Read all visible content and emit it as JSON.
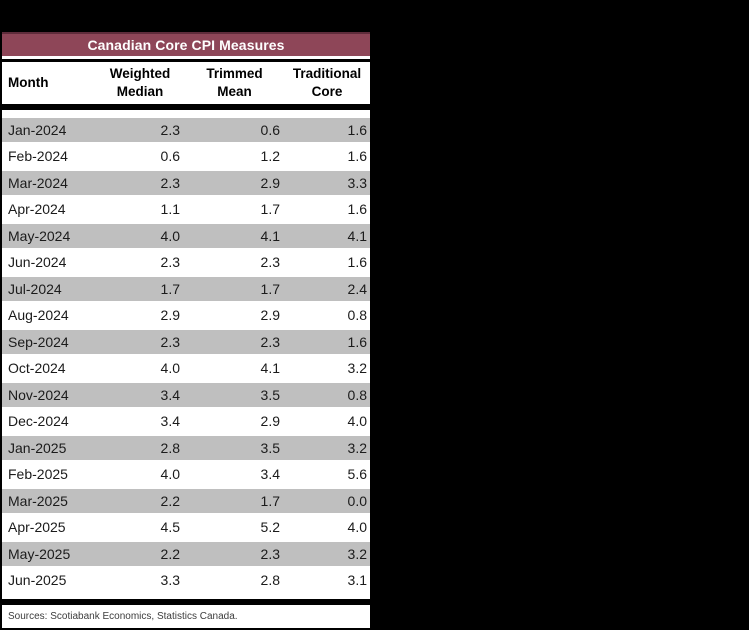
{
  "table": {
    "title": "Canadian Core CPI Measures",
    "columns": [
      {
        "name": "month",
        "lines": [
          "Month"
        ]
      },
      {
        "name": "weighted_median",
        "lines": [
          "Weighted",
          "Median"
        ]
      },
      {
        "name": "trimmed_mean",
        "lines": [
          "Trimmed",
          "Mean"
        ]
      },
      {
        "name": "traditional_core",
        "lines": [
          "Traditional",
          "Core"
        ]
      }
    ],
    "rows": [
      {
        "month": "Jan-2024",
        "weighted_median": "2.3",
        "trimmed_mean": "0.6",
        "traditional_core": "1.6"
      },
      {
        "month": "Feb-2024",
        "weighted_median": "0.6",
        "trimmed_mean": "1.2",
        "traditional_core": "1.6"
      },
      {
        "month": "Mar-2024",
        "weighted_median": "2.3",
        "trimmed_mean": "2.9",
        "traditional_core": "3.3"
      },
      {
        "month": "Apr-2024",
        "weighted_median": "1.1",
        "trimmed_mean": "1.7",
        "traditional_core": "1.6"
      },
      {
        "month": "May-2024",
        "weighted_median": "4.0",
        "trimmed_mean": "4.1",
        "traditional_core": "4.1"
      },
      {
        "month": "Jun-2024",
        "weighted_median": "2.3",
        "trimmed_mean": "2.3",
        "traditional_core": "1.6"
      },
      {
        "month": "Jul-2024",
        "weighted_median": "1.7",
        "trimmed_mean": "1.7",
        "traditional_core": "2.4"
      },
      {
        "month": "Aug-2024",
        "weighted_median": "2.9",
        "trimmed_mean": "2.9",
        "traditional_core": "0.8"
      },
      {
        "month": "Sep-2024",
        "weighted_median": "2.3",
        "trimmed_mean": "2.3",
        "traditional_core": "1.6"
      },
      {
        "month": "Oct-2024",
        "weighted_median": "4.0",
        "trimmed_mean": "4.1",
        "traditional_core": "3.2"
      },
      {
        "month": "Nov-2024",
        "weighted_median": "3.4",
        "trimmed_mean": "3.5",
        "traditional_core": "0.8"
      },
      {
        "month": "Dec-2024",
        "weighted_median": "3.4",
        "trimmed_mean": "2.9",
        "traditional_core": "4.0"
      },
      {
        "month": "Jan-2025",
        "weighted_median": "2.8",
        "trimmed_mean": "3.5",
        "traditional_core": "3.2"
      },
      {
        "month": "Feb-2025",
        "weighted_median": "4.0",
        "trimmed_mean": "3.4",
        "traditional_core": "5.6"
      },
      {
        "month": "Mar-2025",
        "weighted_median": "2.2",
        "trimmed_mean": "1.7",
        "traditional_core": "0.0"
      },
      {
        "month": "Apr-2025",
        "weighted_median": "4.5",
        "trimmed_mean": "5.2",
        "traditional_core": "4.0"
      },
      {
        "month": "May-2025",
        "weighted_median": "2.2",
        "trimmed_mean": "2.3",
        "traditional_core": "3.2"
      },
      {
        "month": "Jun-2025",
        "weighted_median": "3.3",
        "trimmed_mean": "2.8",
        "traditional_core": "3.1"
      }
    ],
    "footer": "Sources: Scotiabank Economics, Statistics Canada."
  },
  "colors": {
    "accent_maroon": "#8e4658",
    "accent_maroon_dark": "#5f2c3b",
    "stripe_gray": "#bfbfbf",
    "canvas_black": "#000000"
  },
  "chart_data": {
    "type": "table",
    "title": "Canadian Core CPI Measures",
    "columns": [
      "Month",
      "Weighted Median",
      "Trimmed Mean",
      "Traditional Core"
    ],
    "rows": [
      [
        "Jan-2024",
        2.3,
        0.6,
        1.6
      ],
      [
        "Feb-2024",
        0.6,
        1.2,
        1.6
      ],
      [
        "Mar-2024",
        2.3,
        2.9,
        3.3
      ],
      [
        "Apr-2024",
        1.1,
        1.7,
        1.6
      ],
      [
        "May-2024",
        4.0,
        4.1,
        4.1
      ],
      [
        "Jun-2024",
        2.3,
        2.3,
        1.6
      ],
      [
        "Jul-2024",
        1.7,
        1.7,
        2.4
      ],
      [
        "Aug-2024",
        2.9,
        2.9,
        0.8
      ],
      [
        "Sep-2024",
        2.3,
        2.3,
        1.6
      ],
      [
        "Oct-2024",
        4.0,
        4.1,
        3.2
      ],
      [
        "Nov-2024",
        3.4,
        3.5,
        0.8
      ],
      [
        "Dec-2024",
        3.4,
        2.9,
        4.0
      ],
      [
        "Jan-2025",
        2.8,
        3.5,
        3.2
      ],
      [
        "Feb-2025",
        4.0,
        3.4,
        5.6
      ],
      [
        "Mar-2025",
        2.2,
        1.7,
        0.0
      ],
      [
        "Apr-2025",
        4.5,
        5.2,
        4.0
      ],
      [
        "May-2025",
        2.2,
        2.3,
        3.2
      ],
      [
        "Jun-2025",
        3.3,
        2.8,
        3.1
      ]
    ],
    "footer": "Sources: Scotiabank Economics, Statistics Canada.",
    "layout_hints": {
      "row_striping": "odd rows gray",
      "value_alignment": "right",
      "header_alignment": "center"
    }
  }
}
